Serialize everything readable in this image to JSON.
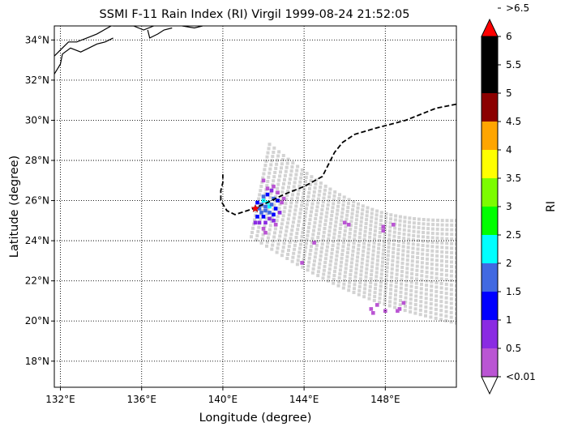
{
  "title": "SSMI F-11 Rain Index (RI) Virgil 1999-08-24 21:52:05",
  "x_label": "Longitude (degree)",
  "y_label": "Latitude (degree)",
  "colorbar_label": "RI",
  "chart_data": {
    "type": "map",
    "lon_range": [
      131.7,
      151.5
    ],
    "lat_range": [
      16.7,
      34.7
    ],
    "lon_ticks": [
      {
        "value": 132,
        "label": "132°E"
      },
      {
        "value": 136,
        "label": "136°E"
      },
      {
        "value": 140,
        "label": "140°E"
      },
      {
        "value": 144,
        "label": "144°E"
      },
      {
        "value": 148,
        "label": "148°E"
      }
    ],
    "lat_ticks": [
      {
        "value": 18,
        "label": "18°N"
      },
      {
        "value": 20,
        "label": "20°N"
      },
      {
        "value": 22,
        "label": "22°N"
      },
      {
        "value": 24,
        "label": "24°N"
      },
      {
        "value": 26,
        "label": "26°N"
      },
      {
        "value": 28,
        "label": "28°N"
      },
      {
        "value": 30,
        "label": "30°N"
      },
      {
        "value": 32,
        "label": "32°N"
      },
      {
        "value": 34,
        "label": "34°N"
      }
    ],
    "grid": true,
    "track": [
      [
        151.5,
        30.8
      ],
      [
        150.5,
        30.6
      ],
      [
        149.0,
        30.0
      ],
      [
        147.5,
        29.6
      ],
      [
        146.5,
        29.3
      ],
      [
        145.9,
        28.9
      ],
      [
        145.5,
        28.4
      ],
      [
        145.3,
        28.0
      ],
      [
        144.9,
        27.2
      ],
      [
        144.0,
        26.7
      ],
      [
        143.0,
        26.3
      ],
      [
        142.2,
        25.9
      ],
      [
        141.5,
        25.6
      ],
      [
        140.6,
        25.3
      ],
      [
        140.2,
        25.5
      ],
      [
        139.9,
        26.0
      ],
      [
        139.9,
        26.5
      ],
      [
        140.0,
        26.9
      ],
      [
        140.0,
        27.3
      ]
    ],
    "storm_center": {
      "lon": 141.6,
      "lat": 25.6
    },
    "swath": {
      "apex": [
        142.3,
        28.8
      ],
      "near_side": [
        141.4,
        24.2
      ],
      "far_top": [
        151.5,
        25.0
      ],
      "far_bottom": [
        151.5,
        19.9
      ]
    },
    "rain_pixels": [
      {
        "lon": 142.0,
        "lat": 26.0,
        "ri": 2.5
      },
      {
        "lon": 142.2,
        "lat": 25.9,
        "ri": 2.5
      },
      {
        "lon": 142.1,
        "lat": 25.7,
        "ri": 2.0
      },
      {
        "lon": 142.3,
        "lat": 25.7,
        "ri": 2.5
      },
      {
        "lon": 141.9,
        "lat": 25.8,
        "ri": 2.0
      },
      {
        "lon": 141.8,
        "lat": 25.6,
        "ri": 2.0
      },
      {
        "lon": 142.1,
        "lat": 25.5,
        "ri": 2.0
      },
      {
        "lon": 142.3,
        "lat": 25.4,
        "ri": 2.0
      },
      {
        "lon": 142.4,
        "lat": 25.8,
        "ri": 2.0
      },
      {
        "lon": 142.0,
        "lat": 26.2,
        "ri": 2.0
      },
      {
        "lon": 142.5,
        "lat": 26.1,
        "ri": 2.0
      },
      {
        "lon": 141.9,
        "lat": 25.4,
        "ri": 2.0
      },
      {
        "lon": 142.6,
        "lat": 25.6,
        "ri": 1.5
      },
      {
        "lon": 141.7,
        "lat": 25.9,
        "ri": 1.5
      },
      {
        "lon": 142.2,
        "lat": 26.3,
        "ri": 1.5
      },
      {
        "lon": 142.5,
        "lat": 25.3,
        "ri": 1.5
      },
      {
        "lon": 141.7,
        "lat": 25.2,
        "ri": 1.5
      },
      {
        "lon": 142.7,
        "lat": 26.0,
        "ri": 1.5
      },
      {
        "lon": 142.0,
        "lat": 25.2,
        "ri": 1.5
      },
      {
        "lon": 142.3,
        "lat": 25.1,
        "ri": 1.0
      },
      {
        "lon": 141.8,
        "lat": 24.9,
        "ri": 1.0
      },
      {
        "lon": 142.5,
        "lat": 25.0,
        "ri": 1.0
      },
      {
        "lon": 142.8,
        "lat": 25.4,
        "ri": 1.0
      },
      {
        "lon": 142.4,
        "lat": 26.5,
        "ri": 1.0
      },
      {
        "lon": 141.6,
        "lat": 24.9,
        "ri": 1.0
      },
      {
        "lon": 142.1,
        "lat": 24.9,
        "ri": 1.0
      },
      {
        "lon": 142.7,
        "lat": 26.4,
        "ri": 0.5
      },
      {
        "lon": 142.2,
        "lat": 26.6,
        "ri": 0.5
      },
      {
        "lon": 142.9,
        "lat": 25.9,
        "ri": 0.5
      },
      {
        "lon": 142.0,
        "lat": 24.6,
        "ri": 0.5
      },
      {
        "lon": 142.5,
        "lat": 26.7,
        "ri": 0.5
      },
      {
        "lon": 142.6,
        "lat": 24.8,
        "ri": 0.5
      },
      {
        "lon": 143.0,
        "lat": 26.1,
        "ri": 0.5
      },
      {
        "lon": 142.0,
        "lat": 27.0,
        "ri": 0.5
      },
      {
        "lon": 142.1,
        "lat": 24.4,
        "ri": 0.5
      },
      {
        "lon": 146.0,
        "lat": 24.9,
        "ri": 0.5
      },
      {
        "lon": 146.2,
        "lat": 24.8,
        "ri": 0.5
      },
      {
        "lon": 147.9,
        "lat": 24.7,
        "ri": 0.5
      },
      {
        "lon": 147.9,
        "lat": 24.5,
        "ri": 0.5
      },
      {
        "lon": 148.4,
        "lat": 24.8,
        "ri": 0.5
      },
      {
        "lon": 144.5,
        "lat": 23.9,
        "ri": 0.5
      },
      {
        "lon": 143.9,
        "lat": 22.9,
        "ri": 0.5
      },
      {
        "lon": 147.3,
        "lat": 20.6,
        "ri": 0.5
      },
      {
        "lon": 147.6,
        "lat": 20.8,
        "ri": 0.5
      },
      {
        "lon": 147.4,
        "lat": 20.4,
        "ri": 0.5
      },
      {
        "lon": 148.0,
        "lat": 20.5,
        "ri": 0.5
      },
      {
        "lon": 148.7,
        "lat": 20.6,
        "ri": 0.5
      },
      {
        "lon": 148.9,
        "lat": 20.9,
        "ri": 0.5
      },
      {
        "lon": 148.6,
        "lat": 20.5,
        "ri": 0.5
      }
    ],
    "coastline": [
      [
        [
          131.7,
          33.2
        ],
        [
          132.0,
          33.5
        ],
        [
          132.4,
          33.9
        ],
        [
          132.8,
          33.9
        ],
        [
          133.3,
          34.1
        ],
        [
          133.8,
          34.3
        ],
        [
          134.5,
          34.7
        ]
      ],
      [
        [
          131.7,
          32.3
        ],
        [
          132.0,
          32.8
        ],
        [
          132.1,
          33.3
        ],
        [
          132.5,
          33.6
        ],
        [
          133.0,
          33.4
        ],
        [
          133.4,
          33.6
        ],
        [
          133.8,
          33.8
        ],
        [
          134.2,
          33.9
        ],
        [
          134.6,
          34.1
        ]
      ],
      [
        [
          134.6,
          34.7
        ],
        [
          135.0,
          34.7
        ],
        [
          135.6,
          34.7
        ],
        [
          136.1,
          34.5
        ],
        [
          136.6,
          34.7
        ]
      ],
      [
        [
          136.3,
          34.5
        ],
        [
          136.4,
          34.1
        ],
        [
          136.8,
          34.3
        ],
        [
          137.1,
          34.5
        ],
        [
          137.5,
          34.6
        ]
      ],
      [
        [
          138.0,
          34.7
        ],
        [
          138.6,
          34.6
        ],
        [
          139.0,
          34.7
        ]
      ]
    ],
    "colorbar": {
      "bins": [
        {
          "label": "<0.01",
          "color": "#d3d3d3"
        },
        {
          "label": "0.5",
          "color": "#ba55d3"
        },
        {
          "label": "1",
          "color": "#8a2be2"
        },
        {
          "label": "1.5",
          "color": "#0000ff"
        },
        {
          "label": "2",
          "color": "#4169e1"
        },
        {
          "label": "2.5",
          "color": "#00ffff"
        },
        {
          "label": "3",
          "color": "#00ff00"
        },
        {
          "label": "3.5",
          "color": "#7cfc00"
        },
        {
          "label": "4",
          "color": "#ffff00"
        },
        {
          "label": "4.5",
          "color": "#ffa500"
        },
        {
          "label": "5",
          "color": "#8b0000"
        },
        {
          "label": "5.5",
          "color": "#000000"
        },
        {
          "label": "6",
          "color": "#000000"
        },
        {
          "label": ">6.5",
          "color": "#ff0000"
        }
      ],
      "tick_labels": [
        "<0.01",
        "0.5",
        "1",
        "1.5",
        "2",
        "2.5",
        "3",
        "3.5",
        "4",
        "4.5",
        "5",
        "5.5",
        "6",
        ">6.5"
      ],
      "under_color": "#ffffff",
      "over_color": "#ff0000",
      "swath_color": "#d3d3d3"
    }
  }
}
